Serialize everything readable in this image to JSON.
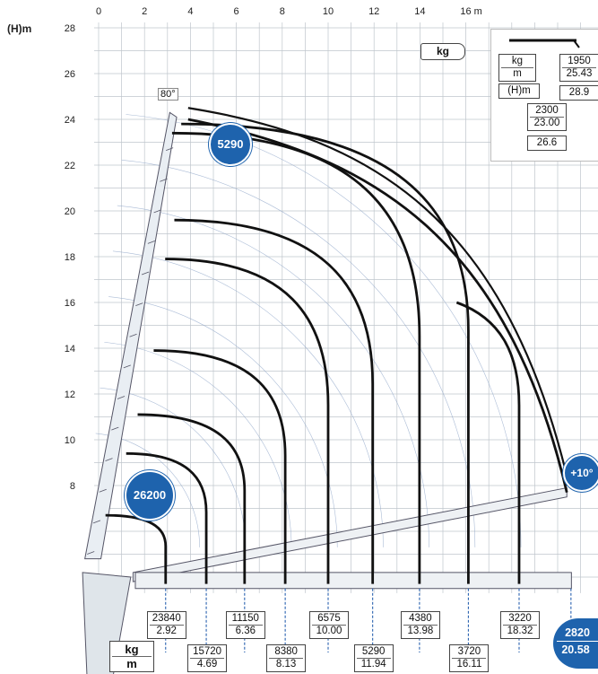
{
  "axes": {
    "y_unit": "(H)m",
    "x_unit": "m",
    "x_ticks": [
      "0",
      "2",
      "4",
      "6",
      "8",
      "10",
      "12",
      "14",
      "16 m"
    ],
    "y_ticks": [
      "8",
      "10",
      "12",
      "14",
      "16",
      "18",
      "20",
      "22",
      "24",
      "26",
      "28"
    ]
  },
  "angles": {
    "max": "80°",
    "min": "+10°"
  },
  "unit_tag": "kg",
  "corner": {
    "kg": "kg",
    "m": "m",
    "h": "(H)m",
    "v1": "1950",
    "v2": "25.43",
    "v3": "28.9",
    "v4": "2300",
    "v5": "23.00",
    "v6": "26.6"
  },
  "bottom_unit": {
    "kg": "kg",
    "m": "m"
  },
  "badges": {
    "top": "5290",
    "left": "26200",
    "right_kg": "2820",
    "right_m": "20.58"
  },
  "loads": [
    {
      "kg": "23840",
      "m": "2.92"
    },
    {
      "kg": "15720",
      "m": "4.69"
    },
    {
      "kg": "11150",
      "m": "6.36"
    },
    {
      "kg": "8380",
      "m": "8.13"
    },
    {
      "kg": "6575",
      "m": "10.00"
    },
    {
      "kg": "5290",
      "m": "11.94"
    },
    {
      "kg": "4380",
      "m": "13.98"
    },
    {
      "kg": "3720",
      "m": "16.11"
    },
    {
      "kg": "3220",
      "m": "18.32"
    }
  ],
  "colors": {
    "badge": "#1e63ad",
    "grid": "#bfc6cc",
    "curve": "#111111",
    "guide": "#2a62b0"
  }
}
